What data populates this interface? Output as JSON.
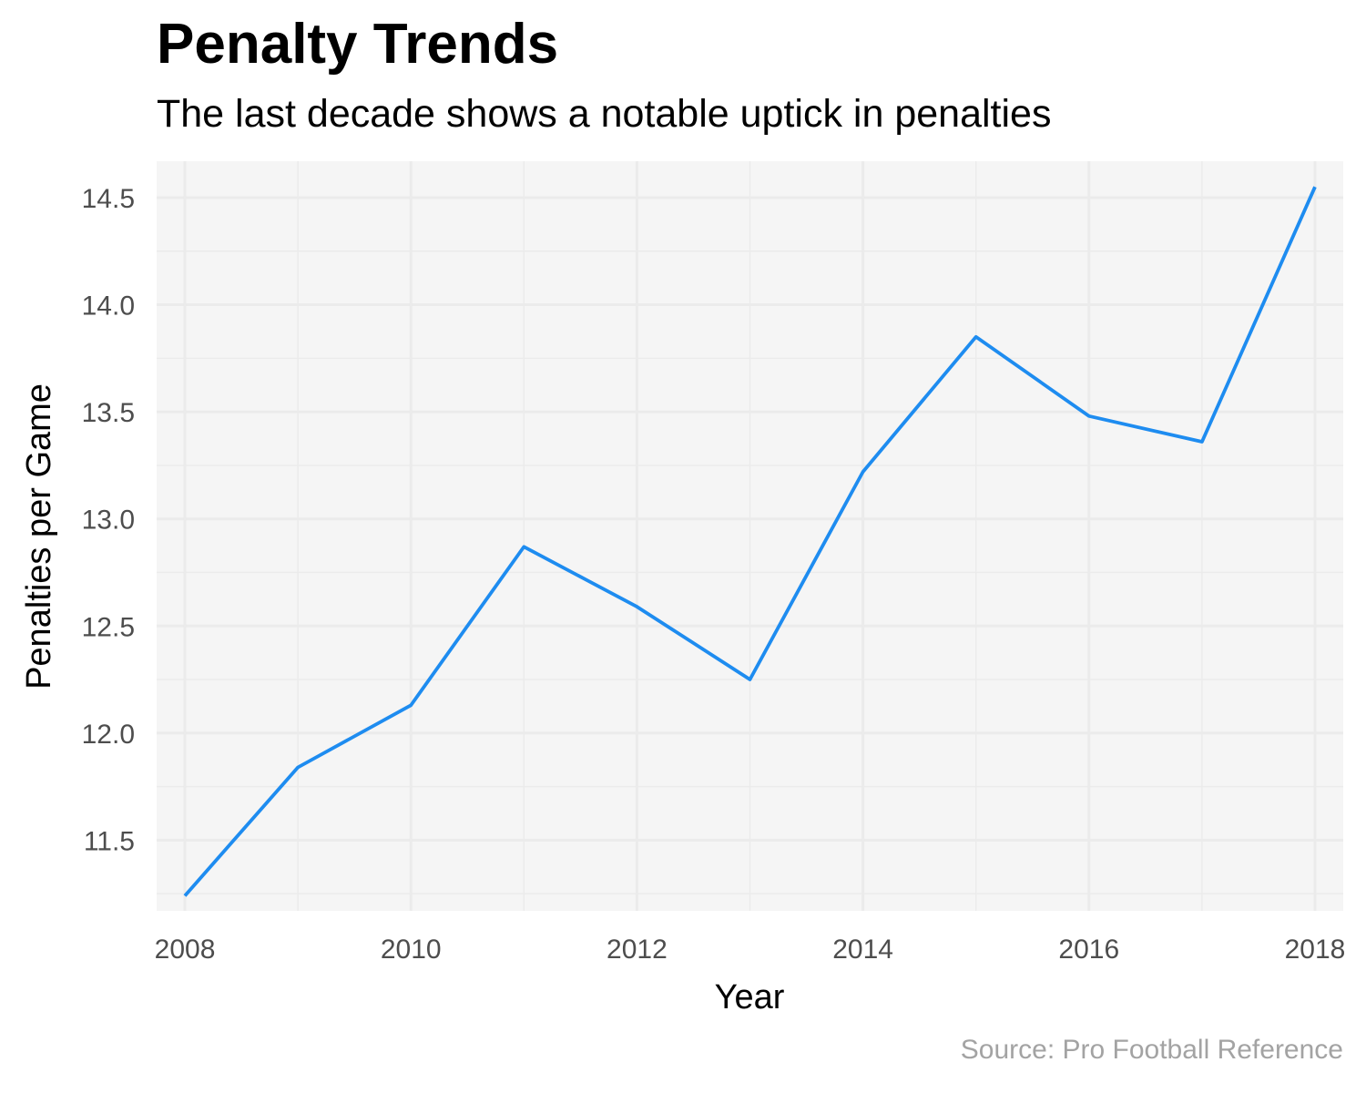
{
  "chart_data": {
    "type": "line",
    "title": "Penalty Trends",
    "subtitle": "The last decade shows a notable uptick in penalties",
    "xlabel": "Year",
    "ylabel": "Penalties per Game",
    "caption": "Source: Pro Football Reference",
    "x": [
      2008,
      2009,
      2010,
      2011,
      2012,
      2013,
      2014,
      2015,
      2016,
      2017,
      2018
    ],
    "series": [
      {
        "values": [
          11.24,
          11.84,
          12.13,
          12.87,
          12.59,
          12.25,
          13.22,
          13.85,
          13.48,
          13.36,
          14.55
        ]
      }
    ],
    "xlim": [
      2007.75,
      2018.25
    ],
    "ylim": [
      11.17,
      14.67
    ],
    "x_ticks": [
      "2008",
      "2010",
      "2012",
      "2014",
      "2016",
      "2018"
    ],
    "y_ticks": [
      "11.5",
      "12.0",
      "12.5",
      "13.0",
      "13.5",
      "14.0",
      "14.5"
    ],
    "grid": true,
    "line_color": "#1e8cf0",
    "panel_color": "#f5f5f5",
    "grid_color": "#ebebeb"
  }
}
